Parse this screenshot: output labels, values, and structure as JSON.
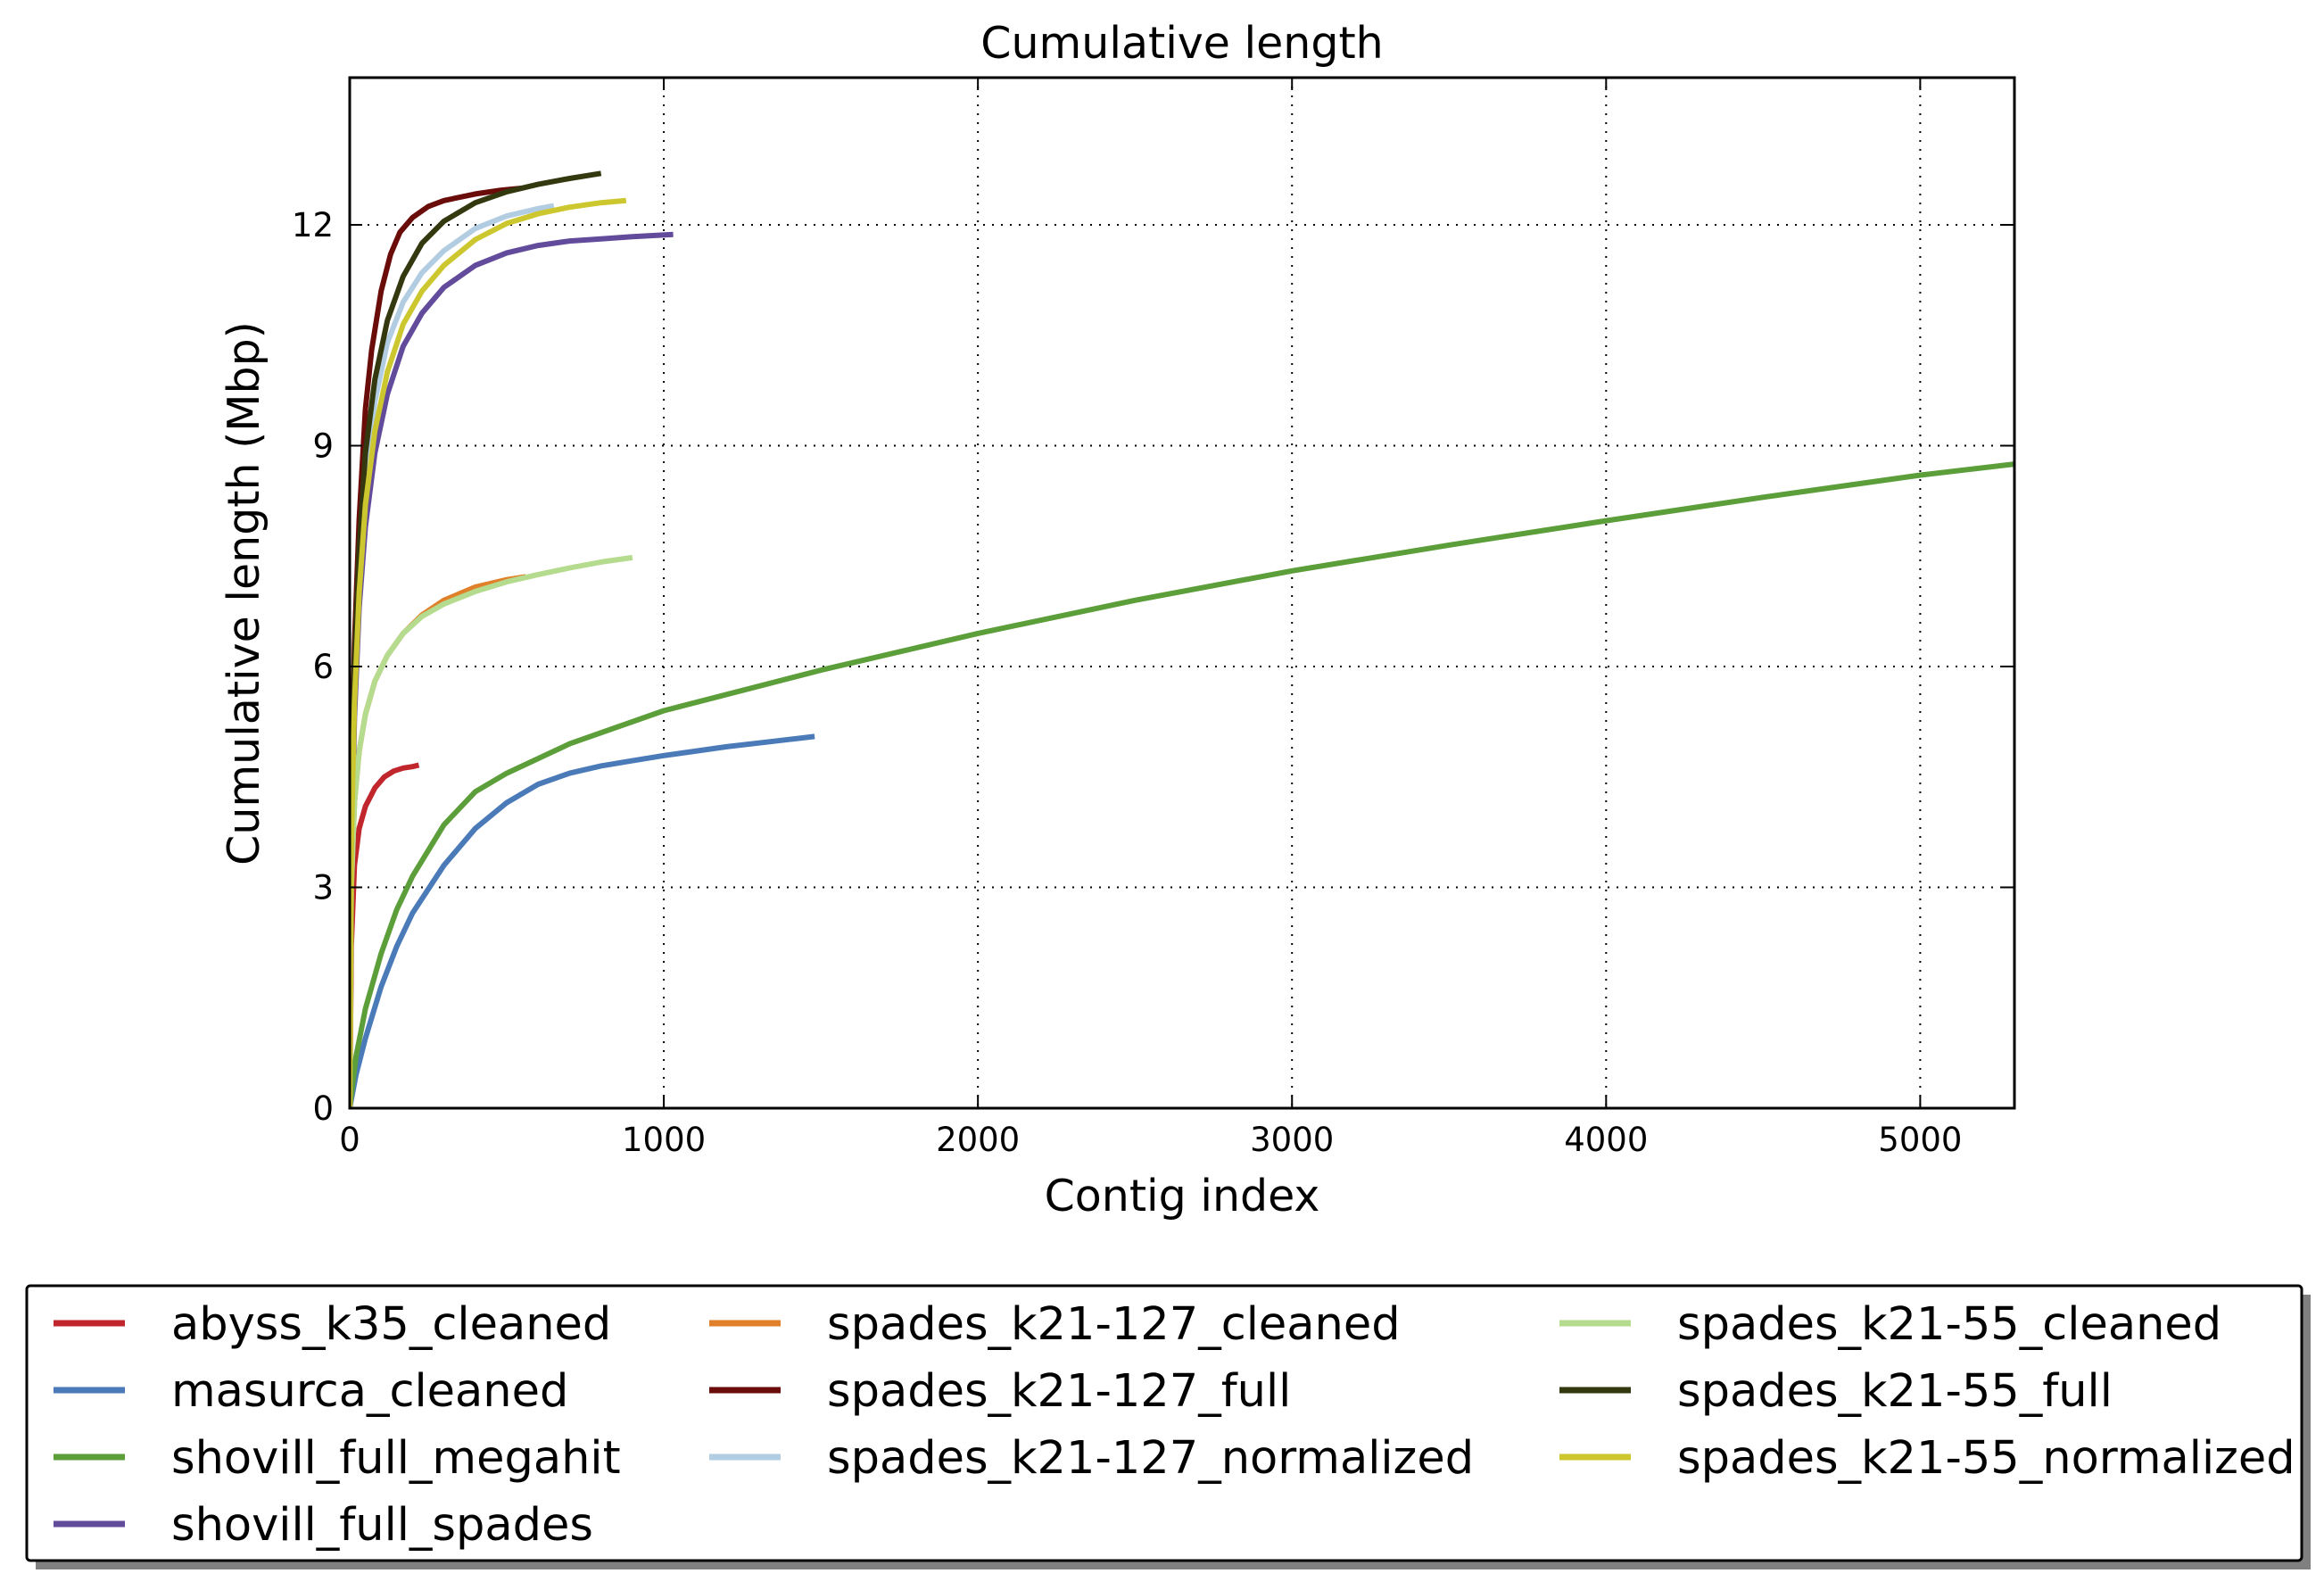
{
  "chart_data": {
    "type": "line",
    "title": "Cumulative length",
    "xlabel": "Contig index",
    "ylabel": "Cumulative length (Mbp)",
    "xlim": [
      0,
      5300
    ],
    "ylim": [
      0,
      14
    ],
    "xticks": [
      0,
      1000,
      2000,
      3000,
      4000,
      5000
    ],
    "yticks": [
      0,
      3,
      6,
      9,
      12
    ],
    "grid": true,
    "grid_style": "dotted",
    "legend_placement": "below",
    "legend_columns": 3,
    "series": [
      {
        "name": "abyss_k35_cleaned",
        "color": "#c0262b",
        "x": [
          0,
          5,
          15,
          30,
          50,
          80,
          110,
          140,
          170,
          200,
          220
        ],
        "y": [
          0,
          2.2,
          3.3,
          3.8,
          4.1,
          4.35,
          4.5,
          4.58,
          4.62,
          4.64,
          4.66
        ]
      },
      {
        "name": "masurca_cleaned",
        "color": "#4a7ab8",
        "x": [
          0,
          20,
          50,
          100,
          150,
          200,
          300,
          400,
          500,
          600,
          700,
          800,
          900,
          1000,
          1100,
          1200,
          1300,
          1400,
          1480
        ],
        "y": [
          0,
          0.45,
          0.95,
          1.65,
          2.2,
          2.65,
          3.3,
          3.8,
          4.15,
          4.4,
          4.55,
          4.65,
          4.72,
          4.79,
          4.85,
          4.91,
          4.96,
          5.01,
          5.05
        ]
      },
      {
        "name": "shovill_full_megahit",
        "color": "#5c9e3a",
        "x": [
          0,
          20,
          50,
          100,
          150,
          200,
          300,
          400,
          500,
          700,
          1000,
          1500,
          2000,
          2500,
          3000,
          3500,
          4000,
          4500,
          5000,
          5300
        ],
        "y": [
          0,
          0.7,
          1.35,
          2.1,
          2.7,
          3.15,
          3.85,
          4.3,
          4.55,
          4.95,
          5.4,
          5.95,
          6.45,
          6.9,
          7.3,
          7.65,
          7.98,
          8.3,
          8.6,
          8.75
        ]
      },
      {
        "name": "shovill_full_spades",
        "color": "#634b9c",
        "x": [
          0,
          5,
          15,
          30,
          50,
          80,
          120,
          170,
          230,
          300,
          400,
          500,
          600,
          700,
          800,
          900,
          1030
        ],
        "y": [
          0,
          3.2,
          5.3,
          6.8,
          7.9,
          8.9,
          9.7,
          10.35,
          10.8,
          11.15,
          11.45,
          11.62,
          11.72,
          11.78,
          11.81,
          11.84,
          11.87
        ]
      },
      {
        "name": "spades_k21-127_cleaned",
        "color": "#e0802a",
        "x": [
          0,
          5,
          15,
          30,
          50,
          80,
          120,
          170,
          230,
          300,
          400,
          500,
          560
        ],
        "y": [
          0,
          3.0,
          4.15,
          4.85,
          5.35,
          5.8,
          6.15,
          6.45,
          6.7,
          6.9,
          7.08,
          7.18,
          7.22
        ]
      },
      {
        "name": "spades_k21-127_full",
        "color": "#6a0c0a",
        "x": [
          0,
          5,
          15,
          30,
          50,
          70,
          100,
          130,
          160,
          200,
          250,
          300,
          400,
          480,
          550
        ],
        "y": [
          0,
          4.2,
          6.3,
          8.0,
          9.5,
          10.3,
          11.1,
          11.6,
          11.9,
          12.1,
          12.25,
          12.33,
          12.42,
          12.47,
          12.5
        ]
      },
      {
        "name": "spades_k21-127_normalized",
        "color": "#b2cde2",
        "x": [
          0,
          5,
          15,
          30,
          50,
          80,
          120,
          170,
          230,
          300,
          400,
          500,
          600,
          650
        ],
        "y": [
          0,
          3.8,
          5.8,
          7.4,
          8.6,
          9.6,
          10.4,
          10.95,
          11.35,
          11.65,
          11.95,
          12.12,
          12.22,
          12.26
        ]
      },
      {
        "name": "spades_k21-55_cleaned",
        "color": "#b5db8e",
        "x": [
          0,
          5,
          15,
          30,
          50,
          80,
          120,
          170,
          230,
          300,
          400,
          500,
          600,
          700,
          800,
          900
        ],
        "y": [
          0,
          3.0,
          4.15,
          4.85,
          5.35,
          5.8,
          6.15,
          6.45,
          6.68,
          6.85,
          7.02,
          7.15,
          7.25,
          7.34,
          7.42,
          7.48
        ]
      },
      {
        "name": "spades_k21-55_full",
        "color": "#34380f",
        "x": [
          0,
          5,
          15,
          30,
          50,
          80,
          120,
          170,
          230,
          300,
          400,
          500,
          600,
          700,
          800
        ],
        "y": [
          0,
          4.0,
          6.0,
          7.6,
          8.9,
          9.9,
          10.7,
          11.3,
          11.75,
          12.05,
          12.3,
          12.45,
          12.55,
          12.63,
          12.7
        ]
      },
      {
        "name": "spades_k21-55_normalized",
        "color": "#cdc72f",
        "x": [
          0,
          5,
          15,
          30,
          50,
          80,
          120,
          170,
          230,
          300,
          400,
          500,
          600,
          700,
          800,
          880
        ],
        "y": [
          0,
          3.6,
          5.5,
          7.0,
          8.2,
          9.2,
          10.0,
          10.65,
          11.1,
          11.45,
          11.8,
          12.02,
          12.15,
          12.24,
          12.3,
          12.33
        ]
      }
    ]
  }
}
